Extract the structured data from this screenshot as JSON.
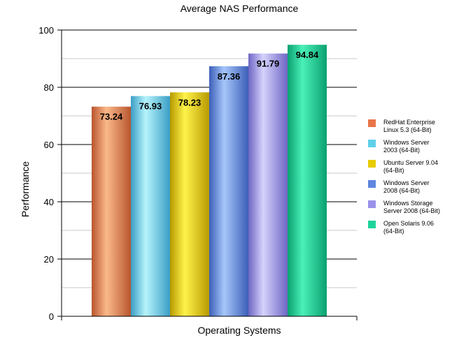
{
  "chart_data": {
    "type": "bar",
    "title": "Average NAS Performance",
    "xlabel": "Operating Systems",
    "ylabel": "Performance",
    "ylim": [
      0,
      100
    ],
    "yticks": [
      0,
      20,
      40,
      60,
      80,
      100
    ],
    "grid": true,
    "legend_position": "right",
    "series": [
      {
        "name": "RedHat Enterprise Linux 5.3 (64-Bit)",
        "value": 73.24,
        "value_label": "73.24",
        "legend_lines": [
          "RedHat Enterprise",
          "Linux 5.3 (64-Bit)"
        ],
        "color": "#e8764a",
        "light": "#fbb98a",
        "dark": "#b8552e"
      },
      {
        "name": "Windows Server 2003 (64-Bit)",
        "value": 76.93,
        "value_label": "76.93",
        "legend_lines": [
          "Windows Server",
          "2003 (64-Bit)"
        ],
        "color": "#5fd0ea",
        "light": "#b6f4fb",
        "dark": "#3a9ec6"
      },
      {
        "name": "Ubuntu Server 9.04 (64-Bit)",
        "value": 78.23,
        "value_label": "78.23",
        "legend_lines": [
          "Ubuntu Server 9.04",
          "(64-Bit)"
        ],
        "color": "#e8cc00",
        "light": "#fff34a",
        "dark": "#b89a00"
      },
      {
        "name": "Windows Server 2008 (64-Bit)",
        "value": 87.36,
        "value_label": "87.36",
        "legend_lines": [
          "Windows Server",
          "2008 (64-Bit)"
        ],
        "color": "#5f86e0",
        "light": "#a6c6fa",
        "dark": "#3c5fb8"
      },
      {
        "name": "Windows Storage Server 2008 (64-Bit)",
        "value": 91.79,
        "value_label": "91.79",
        "legend_lines": [
          "Windows Storage",
          "Server 2008 (64-Bit)"
        ],
        "color": "#9a92ea",
        "light": "#d6d2fc",
        "dark": "#6e66c4"
      },
      {
        "name": "Open Solaris 9.06 (64-Bit)",
        "value": 94.84,
        "value_label": "94.84",
        "legend_lines": [
          "Open Solaris 9.06",
          "(64-Bit)"
        ],
        "color": "#1ed49a",
        "light": "#4af0b8",
        "dark": "#0aa070"
      }
    ]
  }
}
